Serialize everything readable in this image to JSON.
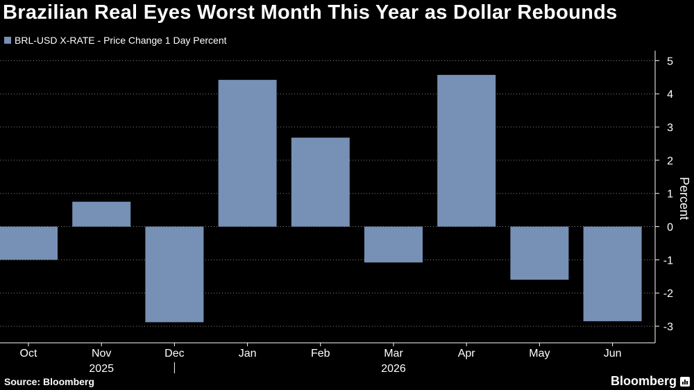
{
  "colors": {
    "background": "#000000",
    "bar": "#7790b5",
    "grid": "#8a8a8a",
    "axis": "#ffffff",
    "text": "#ffffff"
  },
  "footer": {
    "source": "Source: Bloomberg",
    "brand": "Bloomberg",
    "brand_icon": "bloomberg-terminal-icon"
  },
  "chart_data": {
    "type": "bar",
    "title": "Brazilian Real Eyes Worst Month This Year as Dollar Rebounds",
    "legend": "BRL-USD X-RATE - Price Change 1 Day Percent",
    "categories": [
      "Oct",
      "Nov",
      "Dec",
      "Jan",
      "Feb",
      "Mar",
      "Apr",
      "May",
      "Jun"
    ],
    "year_labels": [
      {
        "label": "2025",
        "category": "Nov"
      },
      {
        "label": "2026",
        "category": "Mar"
      }
    ],
    "series": [
      {
        "name": "BRL-USD X-RATE - Price Change 1 Day Percent",
        "values": [
          -1.0,
          0.75,
          -2.88,
          4.42,
          2.68,
          -1.08,
          4.57,
          -1.6,
          -2.85
        ]
      }
    ],
    "ylabel": "Percent",
    "ylim": [
      -3.5,
      5.3
    ],
    "yticks": [
      5,
      4,
      3,
      2,
      1,
      0,
      -1,
      -2,
      -3
    ],
    "grid": true,
    "legend_position": "top-left",
    "y_axis_side": "right"
  }
}
